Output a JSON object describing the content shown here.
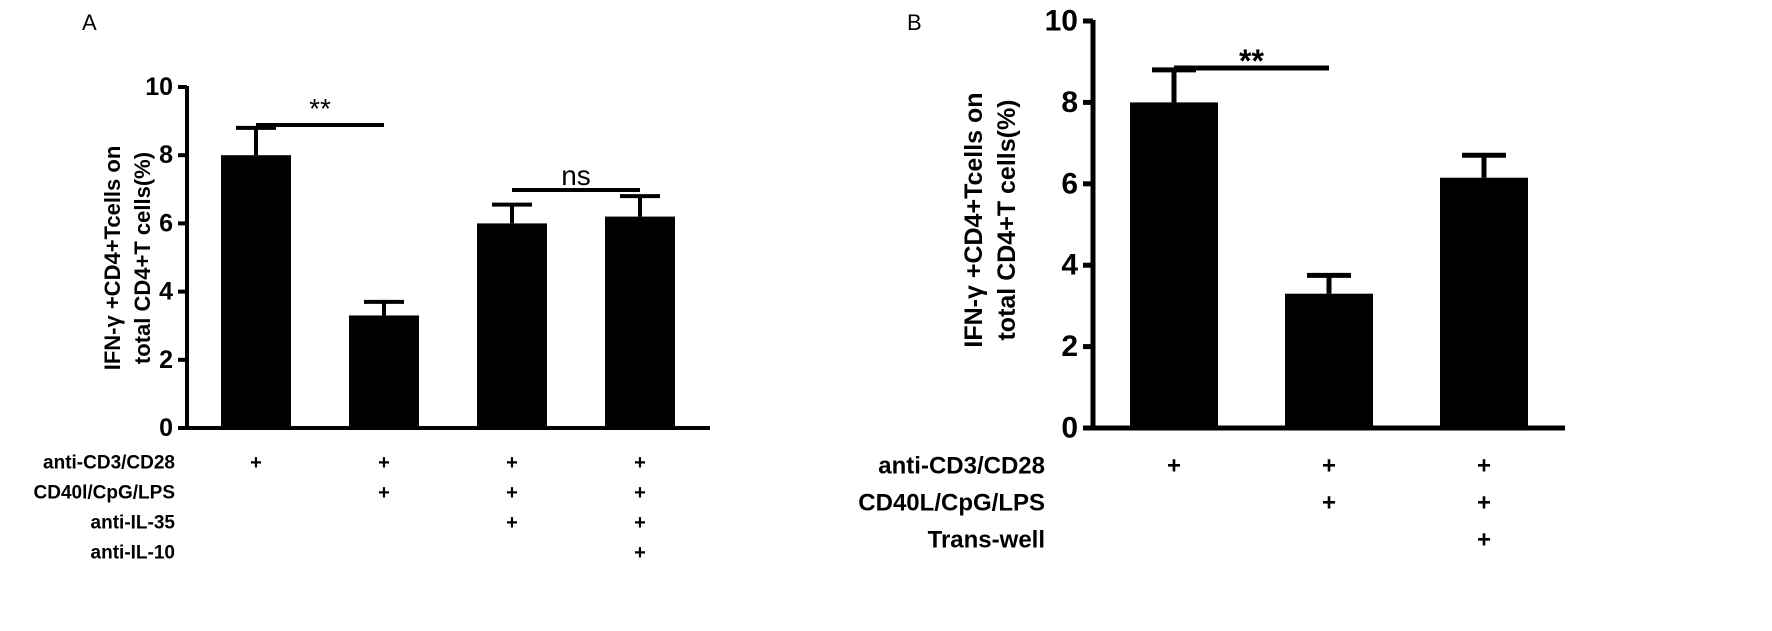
{
  "chart_data": [
    {
      "panel": "A",
      "type": "bar",
      "ylabel_lines": [
        "IFN-γ +CD4+Tcells on",
        "total CD4+T cells(%)"
      ],
      "ylim": [
        0,
        10
      ],
      "yticks": [
        "0",
        "2",
        "4",
        "6",
        "8",
        "10"
      ],
      "values": [
        8.0,
        3.3,
        6.0,
        6.2
      ],
      "errors": [
        0.8,
        0.4,
        0.55,
        0.6
      ],
      "conditions": [
        {
          "label": "anti-CD3/CD28",
          "marks": [
            "+",
            "+",
            "+",
            "+"
          ]
        },
        {
          "label": "CD40l/CpG/LPS",
          "marks": [
            "",
            "+",
            "+",
            "+"
          ]
        },
        {
          "label": "anti-IL-35",
          "marks": [
            "",
            "",
            "+",
            "+"
          ]
        },
        {
          "label": "anti-IL-10",
          "marks": [
            "",
            "",
            "",
            "+"
          ]
        }
      ],
      "significance": [
        {
          "from": 0,
          "to": 1,
          "label": "**"
        },
        {
          "from": 2,
          "to": 3,
          "label": "ns"
        }
      ],
      "grid": false,
      "color": "#000000"
    },
    {
      "panel": "B",
      "type": "bar",
      "ylabel_lines": [
        "IFN-γ +CD4+Tcells on",
        "total CD4+T cells(%)"
      ],
      "ylim": [
        0,
        10
      ],
      "yticks": [
        "0",
        "2",
        "4",
        "6",
        "8",
        "10"
      ],
      "values": [
        8.0,
        3.3,
        6.15
      ],
      "errors": [
        0.8,
        0.45,
        0.55
      ],
      "conditions": [
        {
          "label": "anti-CD3/CD28",
          "marks": [
            "+",
            "+",
            "+"
          ]
        },
        {
          "label": "CD40L/CpG/LPS",
          "marks": [
            "",
            "+",
            "+"
          ]
        },
        {
          "label": "Trans-well",
          "marks": [
            "",
            "",
            "+"
          ]
        }
      ],
      "significance": [
        {
          "from": 0,
          "to": 1,
          "label": "**"
        }
      ],
      "grid": false,
      "color": "#000000"
    }
  ]
}
